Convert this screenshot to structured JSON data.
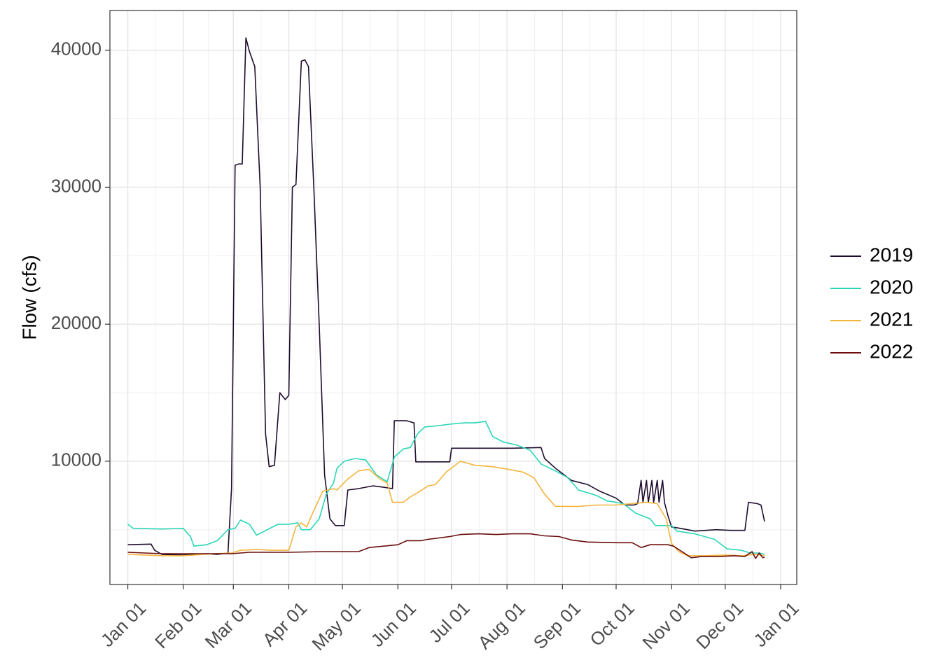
{
  "chart_data": {
    "type": "line",
    "title": "",
    "xlabel": "",
    "ylabel": "Flow (cfs)",
    "x_axis": {
      "type": "date",
      "ticks": [
        "Jan 01",
        "Feb 01",
        "Mar 01",
        "Apr 01",
        "May 01",
        "Jun 01",
        "Jul 01",
        "Aug 01",
        "Sep 01",
        "Oct 01",
        "Nov 01",
        "Dec 01",
        "Jan 01"
      ],
      "range": [
        "2020-12-22",
        "2022-01-10"
      ]
    },
    "y_axis": {
      "ticks": [
        10000,
        20000,
        30000,
        40000
      ],
      "tick_labels": [
        "10000",
        "20000",
        "30000",
        "40000"
      ],
      "ylim": [
        1000,
        42900
      ]
    },
    "grid": true,
    "legend": {
      "position": "right",
      "entries": [
        "2019",
        "2020",
        "2021",
        "2022"
      ]
    },
    "series": [
      {
        "name": "2019",
        "color": "#1f0c2e",
        "points": [
          [
            "2021-01-01",
            3900
          ],
          [
            "2021-01-14",
            3950
          ],
          [
            "2021-01-16",
            3500
          ],
          [
            "2021-01-20",
            3200
          ],
          [
            "2021-02-01",
            3150
          ],
          [
            "2021-02-14",
            3250
          ],
          [
            "2021-02-20",
            3200
          ],
          [
            "2021-02-26",
            3300
          ],
          [
            "2021-02-28",
            8000
          ],
          [
            "2021-03-02",
            31600
          ],
          [
            "2021-03-04",
            31700
          ],
          [
            "2021-03-06",
            31700
          ],
          [
            "2021-03-08",
            40900
          ],
          [
            "2021-03-10",
            39900
          ],
          [
            "2021-03-13",
            38800
          ],
          [
            "2021-03-16",
            30000
          ],
          [
            "2021-03-19",
            12000
          ],
          [
            "2021-03-21",
            9600
          ],
          [
            "2021-03-24",
            9700
          ],
          [
            "2021-03-27",
            15000
          ],
          [
            "2021-03-30",
            14500
          ],
          [
            "2021-04-01",
            14800
          ],
          [
            "2021-04-03",
            30000
          ],
          [
            "2021-04-05",
            30200
          ],
          [
            "2021-04-08",
            39200
          ],
          [
            "2021-04-10",
            39300
          ],
          [
            "2021-04-12",
            38800
          ],
          [
            "2021-04-15",
            30000
          ],
          [
            "2021-04-18",
            20000
          ],
          [
            "2021-04-21",
            9000
          ],
          [
            "2021-04-24",
            5800
          ],
          [
            "2021-04-27",
            5300
          ],
          [
            "2021-05-02",
            5300
          ],
          [
            "2021-05-04",
            7900
          ],
          [
            "2021-05-10",
            8000
          ],
          [
            "2021-05-18",
            8200
          ],
          [
            "2021-05-24",
            8100
          ],
          [
            "2021-05-29",
            8000
          ],
          [
            "2021-05-30",
            12950
          ],
          [
            "2021-06-06",
            12950
          ],
          [
            "2021-06-10",
            12800
          ],
          [
            "2021-06-11",
            9950
          ],
          [
            "2021-06-30",
            9950
          ],
          [
            "2021-07-01",
            10950
          ],
          [
            "2021-07-16",
            10950
          ],
          [
            "2021-08-04",
            10950
          ],
          [
            "2021-08-20",
            11000
          ],
          [
            "2021-08-22",
            10200
          ],
          [
            "2021-08-28",
            9500
          ],
          [
            "2021-09-06",
            8600
          ],
          [
            "2021-09-15",
            8300
          ],
          [
            "2021-09-22",
            7800
          ],
          [
            "2021-10-01",
            7300
          ],
          [
            "2021-10-06",
            6800
          ],
          [
            "2021-10-11",
            6800
          ],
          [
            "2021-10-13",
            6900
          ],
          [
            "2021-10-15",
            8600
          ],
          [
            "2021-10-16",
            7000
          ],
          [
            "2021-10-18",
            8600
          ],
          [
            "2021-10-19",
            7000
          ],
          [
            "2021-10-21",
            8600
          ],
          [
            "2021-10-22",
            7000
          ],
          [
            "2021-10-24",
            8600
          ],
          [
            "2021-10-25",
            7000
          ],
          [
            "2021-10-27",
            8600
          ],
          [
            "2021-10-28",
            7000
          ],
          [
            "2021-10-30",
            6000
          ],
          [
            "2021-11-01",
            5200
          ],
          [
            "2021-11-06",
            5100
          ],
          [
            "2021-11-14",
            4900
          ],
          [
            "2021-11-26",
            5000
          ],
          [
            "2021-12-04",
            4950
          ],
          [
            "2021-12-12",
            4950
          ],
          [
            "2021-12-14",
            7000
          ],
          [
            "2021-12-19",
            6900
          ],
          [
            "2021-12-21",
            6800
          ],
          [
            "2021-12-23",
            5600
          ]
        ]
      },
      {
        "name": "2020",
        "color": "#2ad6b8",
        "points": [
          [
            "2021-01-01",
            5400
          ],
          [
            "2021-01-04",
            5100
          ],
          [
            "2021-01-20",
            5050
          ],
          [
            "2021-02-01",
            5100
          ],
          [
            "2021-02-05",
            4500
          ],
          [
            "2021-02-07",
            3800
          ],
          [
            "2021-02-14",
            3900
          ],
          [
            "2021-02-20",
            4200
          ],
          [
            "2021-02-26",
            5000
          ],
          [
            "2021-03-02",
            5100
          ],
          [
            "2021-03-05",
            5700
          ],
          [
            "2021-03-10",
            5400
          ],
          [
            "2021-03-14",
            4600
          ],
          [
            "2021-03-20",
            5000
          ],
          [
            "2021-03-26",
            5400
          ],
          [
            "2021-04-01",
            5400
          ],
          [
            "2021-04-06",
            5500
          ],
          [
            "2021-04-08",
            5000
          ],
          [
            "2021-04-13",
            5000
          ],
          [
            "2021-04-18",
            5800
          ],
          [
            "2021-04-22",
            7600
          ],
          [
            "2021-04-26",
            8400
          ],
          [
            "2021-04-28",
            9500
          ],
          [
            "2021-05-02",
            10000
          ],
          [
            "2021-05-08",
            10200
          ],
          [
            "2021-05-14",
            10100
          ],
          [
            "2021-05-20",
            9000
          ],
          [
            "2021-05-26",
            8500
          ],
          [
            "2021-05-30",
            10300
          ],
          [
            "2021-06-04",
            10900
          ],
          [
            "2021-06-08",
            11000
          ],
          [
            "2021-06-12",
            12000
          ],
          [
            "2021-06-16",
            12500
          ],
          [
            "2021-06-24",
            12600
          ],
          [
            "2021-06-30",
            12700
          ],
          [
            "2021-07-08",
            12800
          ],
          [
            "2021-07-14",
            12800
          ],
          [
            "2021-07-20",
            12900
          ],
          [
            "2021-07-24",
            11800
          ],
          [
            "2021-07-30",
            11400
          ],
          [
            "2021-08-06",
            11200
          ],
          [
            "2021-08-14",
            10800
          ],
          [
            "2021-08-20",
            9800
          ],
          [
            "2021-08-28",
            9300
          ],
          [
            "2021-09-04",
            8800
          ],
          [
            "2021-09-10",
            7900
          ],
          [
            "2021-09-20",
            7500
          ],
          [
            "2021-09-26",
            7100
          ],
          [
            "2021-10-01",
            7000
          ],
          [
            "2021-10-05",
            6900
          ],
          [
            "2021-10-12",
            6200
          ],
          [
            "2021-10-20",
            5800
          ],
          [
            "2021-10-23",
            5300
          ],
          [
            "2021-11-01",
            5300
          ],
          [
            "2021-11-04",
            4900
          ],
          [
            "2021-11-14",
            4700
          ],
          [
            "2021-11-25",
            4300
          ],
          [
            "2021-12-02",
            3600
          ],
          [
            "2021-12-10",
            3500
          ],
          [
            "2021-12-15",
            3300
          ],
          [
            "2021-12-20",
            3300
          ],
          [
            "2021-12-23",
            3200
          ]
        ]
      },
      {
        "name": "2021",
        "color": "#f4b43c",
        "points": [
          [
            "2021-01-01",
            3200
          ],
          [
            "2021-01-20",
            3100
          ],
          [
            "2021-02-01",
            3100
          ],
          [
            "2021-02-18",
            3250
          ],
          [
            "2021-02-28",
            3300
          ],
          [
            "2021-03-05",
            3500
          ],
          [
            "2021-03-15",
            3550
          ],
          [
            "2021-03-22",
            3500
          ],
          [
            "2021-04-01",
            3500
          ],
          [
            "2021-04-05",
            5200
          ],
          [
            "2021-04-08",
            5500
          ],
          [
            "2021-04-11",
            5200
          ],
          [
            "2021-04-15",
            6400
          ],
          [
            "2021-04-20",
            7800
          ],
          [
            "2021-04-26",
            8000
          ],
          [
            "2021-04-28",
            7900
          ],
          [
            "2021-05-04",
            8700
          ],
          [
            "2021-05-10",
            9300
          ],
          [
            "2021-05-16",
            9400
          ],
          [
            "2021-05-22",
            8700
          ],
          [
            "2021-05-26",
            8400
          ],
          [
            "2021-05-29",
            7000
          ],
          [
            "2021-06-04",
            7000
          ],
          [
            "2021-06-08",
            7400
          ],
          [
            "2021-06-12",
            7700
          ],
          [
            "2021-06-18",
            8200
          ],
          [
            "2021-06-22",
            8300
          ],
          [
            "2021-06-28",
            9200
          ],
          [
            "2021-07-04",
            9800
          ],
          [
            "2021-07-06",
            10000
          ],
          [
            "2021-07-14",
            9700
          ],
          [
            "2021-07-24",
            9600
          ],
          [
            "2021-08-02",
            9400
          ],
          [
            "2021-08-10",
            9200
          ],
          [
            "2021-08-16",
            8800
          ],
          [
            "2021-08-22",
            7600
          ],
          [
            "2021-08-28",
            6700
          ],
          [
            "2021-09-10",
            6700
          ],
          [
            "2021-09-20",
            6800
          ],
          [
            "2021-10-01",
            6800
          ],
          [
            "2021-10-10",
            6900
          ],
          [
            "2021-10-18",
            7000
          ],
          [
            "2021-10-24",
            6900
          ],
          [
            "2021-10-29",
            5800
          ],
          [
            "2021-11-01",
            4000
          ],
          [
            "2021-11-05",
            3400
          ],
          [
            "2021-11-10",
            3100
          ],
          [
            "2021-11-20",
            3100
          ],
          [
            "2021-12-01",
            3150
          ],
          [
            "2021-12-10",
            3100
          ],
          [
            "2021-12-18",
            3200
          ],
          [
            "2021-12-23",
            3100
          ]
        ]
      },
      {
        "name": "2022",
        "color": "#6b0d0d",
        "points": [
          [
            "2021-01-01",
            3350
          ],
          [
            "2021-01-20",
            3250
          ],
          [
            "2021-02-01",
            3250
          ],
          [
            "2021-02-28",
            3250
          ],
          [
            "2021-03-10",
            3350
          ],
          [
            "2021-04-01",
            3350
          ],
          [
            "2021-04-20",
            3400
          ],
          [
            "2021-05-10",
            3400
          ],
          [
            "2021-05-16",
            3700
          ],
          [
            "2021-05-24",
            3800
          ],
          [
            "2021-06-01",
            3900
          ],
          [
            "2021-06-06",
            4200
          ],
          [
            "2021-06-14",
            4200
          ],
          [
            "2021-06-18",
            4300
          ],
          [
            "2021-06-24",
            4400
          ],
          [
            "2021-06-30",
            4500
          ],
          [
            "2021-07-06",
            4650
          ],
          [
            "2021-07-16",
            4700
          ],
          [
            "2021-07-26",
            4650
          ],
          [
            "2021-08-04",
            4700
          ],
          [
            "2021-08-14",
            4700
          ],
          [
            "2021-08-22",
            4550
          ],
          [
            "2021-08-30",
            4500
          ],
          [
            "2021-09-06",
            4250
          ],
          [
            "2021-09-15",
            4100
          ],
          [
            "2021-10-01",
            4050
          ],
          [
            "2021-10-10",
            4050
          ],
          [
            "2021-10-15",
            3700
          ],
          [
            "2021-10-20",
            3900
          ],
          [
            "2021-10-30",
            3900
          ],
          [
            "2021-11-02",
            3800
          ],
          [
            "2021-11-08",
            3300
          ],
          [
            "2021-11-12",
            2950
          ],
          [
            "2021-11-18",
            3050
          ],
          [
            "2021-11-28",
            3050
          ],
          [
            "2021-12-06",
            3100
          ],
          [
            "2021-12-12",
            3050
          ],
          [
            "2021-12-16",
            3400
          ],
          [
            "2021-12-18",
            2900
          ],
          [
            "2021-12-20",
            3300
          ],
          [
            "2021-12-22",
            2950
          ],
          [
            "2021-12-23",
            3000
          ]
        ]
      }
    ]
  }
}
